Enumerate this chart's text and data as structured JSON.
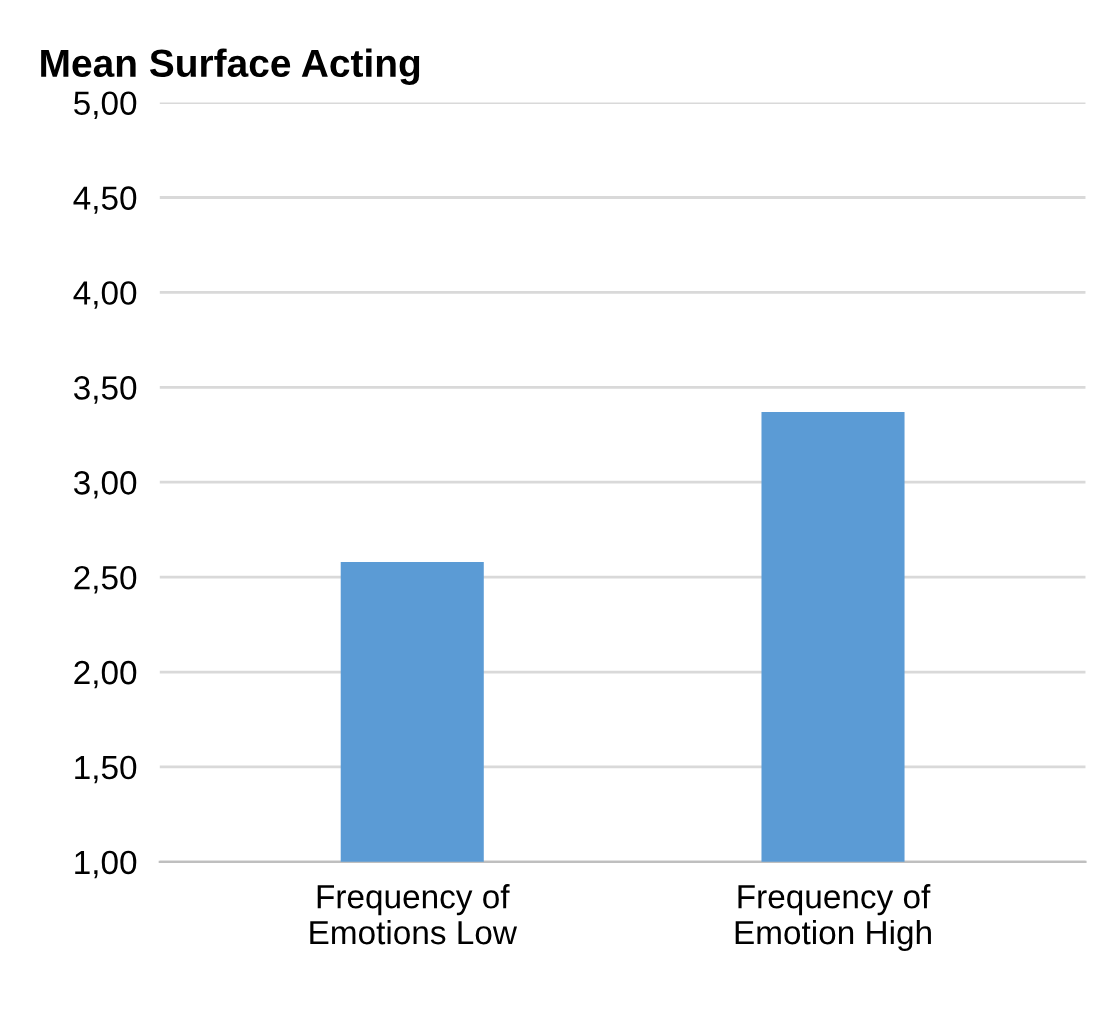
{
  "chart_data": {
    "type": "bar",
    "title": "Mean Surface Acting",
    "categories": [
      "Frequency of\nEmotions Low",
      "Frequency of\nEmotion High"
    ],
    "values": [
      2.58,
      3.37
    ],
    "color": "#5b9bd5",
    "ylim": [
      1,
      5
    ],
    "yticks": [
      {
        "value": 1,
        "label": "1,00"
      },
      {
        "value": 1.5,
        "label": "1,50"
      },
      {
        "value": 2,
        "label": "2,00"
      },
      {
        "value": 2.5,
        "label": "2,50"
      },
      {
        "value": 3,
        "label": "3,00"
      },
      {
        "value": 3.5,
        "label": "3,50"
      },
      {
        "value": 4,
        "label": "4,00"
      },
      {
        "value": 4.5,
        "label": "4,50"
      },
      {
        "value": 5,
        "label": "5,00"
      }
    ],
    "grid": "y"
  }
}
